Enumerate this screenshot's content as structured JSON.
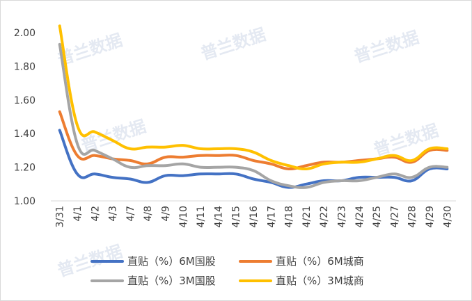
{
  "chart_data": {
    "type": "line",
    "title": "",
    "xlabel": "",
    "ylabel": "",
    "ylim": [
      1.0,
      2.0
    ],
    "yticks": [
      "1.00",
      "1.20",
      "1.40",
      "1.60",
      "1.80",
      "2.00"
    ],
    "grid": false,
    "legend_position": "bottom",
    "categories": [
      "3/31",
      "4/1",
      "4/2",
      "4/3",
      "4/7",
      "4/8",
      "4/9",
      "4/10",
      "4/11",
      "4/14",
      "4/15",
      "4/16",
      "4/17",
      "4/18",
      "4/21",
      "4/22",
      "4/23",
      "4/24",
      "4/25",
      "4/27",
      "4/28",
      "4/29",
      "4/30"
    ],
    "series": [
      {
        "name": "直贴（%）6M国股",
        "color": "#4472C4",
        "values": [
          1.42,
          1.16,
          1.16,
          1.14,
          1.13,
          1.11,
          1.15,
          1.15,
          1.16,
          1.16,
          1.16,
          1.13,
          1.11,
          1.08,
          1.1,
          1.12,
          1.12,
          1.14,
          1.14,
          1.14,
          1.12,
          1.19,
          1.19
        ]
      },
      {
        "name": "直贴（%）6M城商",
        "color": "#ED7D31",
        "values": [
          1.53,
          1.27,
          1.27,
          1.25,
          1.24,
          1.22,
          1.26,
          1.26,
          1.27,
          1.27,
          1.27,
          1.24,
          1.22,
          1.19,
          1.21,
          1.23,
          1.23,
          1.24,
          1.25,
          1.26,
          1.23,
          1.3,
          1.3
        ]
      },
      {
        "name": "直贴（%）3M国股",
        "color": "#A5A5A5",
        "values": [
          1.93,
          1.34,
          1.3,
          1.25,
          1.2,
          1.21,
          1.21,
          1.22,
          1.2,
          1.2,
          1.2,
          1.18,
          1.12,
          1.09,
          1.08,
          1.11,
          1.12,
          1.12,
          1.14,
          1.16,
          1.14,
          1.2,
          1.2
        ]
      },
      {
        "name": "直贴（%）3M城商",
        "color": "#FFC000",
        "values": [
          2.04,
          1.45,
          1.41,
          1.36,
          1.31,
          1.32,
          1.32,
          1.33,
          1.31,
          1.31,
          1.31,
          1.29,
          1.24,
          1.21,
          1.19,
          1.22,
          1.23,
          1.23,
          1.25,
          1.27,
          1.24,
          1.31,
          1.31
        ]
      }
    ]
  },
  "watermark": [
    "普兰数据",
    "普兰数据",
    "普兰数据",
    "普兰数据",
    "普兰数据",
    "普兰数据"
  ]
}
